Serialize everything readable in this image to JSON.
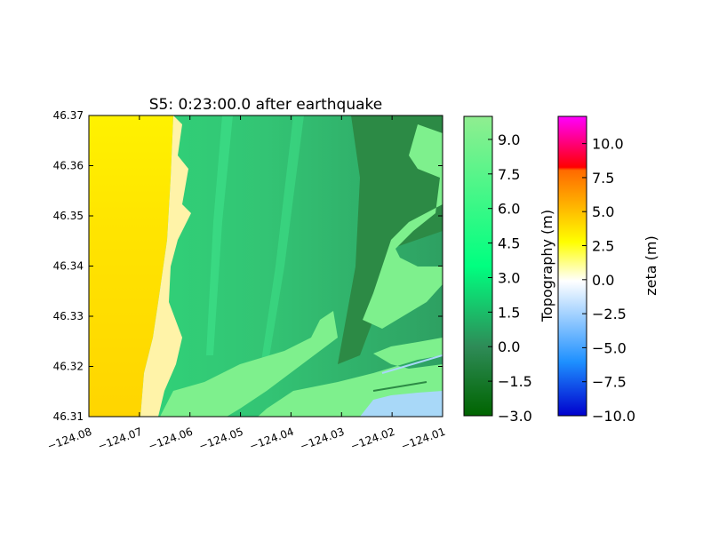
{
  "chart_data": {
    "type": "heatmap",
    "title": "S5: 0:23:00.0 after earthquake",
    "xlabel": "",
    "ylabel": "",
    "xlim": [
      -124.08,
      -124.01
    ],
    "ylim": [
      46.31,
      46.37
    ],
    "x_ticks": [
      -124.08,
      -124.07,
      -124.06,
      -124.05,
      -124.04,
      -124.03,
      -124.02,
      -124.01
    ],
    "x_tick_labels": [
      "−124.08",
      "−124.07",
      "−124.06",
      "−124.05",
      "−124.04",
      "−124.03",
      "−124.02",
      "−124.01"
    ],
    "y_ticks": [
      46.31,
      46.32,
      46.33,
      46.34,
      46.35,
      46.36,
      46.37
    ],
    "y_tick_labels": [
      "46.31",
      "46.32",
      "46.33",
      "46.34",
      "46.35",
      "46.36",
      "46.37"
    ],
    "grid": false,
    "colorbars": [
      {
        "label": "Topography (m)",
        "range": [
          -3.0,
          10.0
        ],
        "ticks": [
          -3.0,
          -1.5,
          0.0,
          1.5,
          3.0,
          4.5,
          6.0,
          7.5,
          9.0
        ],
        "tick_labels": [
          "−3.0",
          "−1.5",
          "0.0",
          "1.5",
          "3.0",
          "4.5",
          "6.0",
          "7.5",
          "9.0"
        ],
        "colors": [
          "#006400",
          "#2e8b57",
          "#00ff80",
          "#90ee90"
        ]
      },
      {
        "label": "zeta (m)",
        "range": [
          -10.0,
          12.0
        ],
        "ticks": [
          -10.0,
          -7.5,
          -5.0,
          -2.5,
          0.0,
          2.5,
          5.0,
          7.5,
          10.0
        ],
        "tick_labels": [
          "−10.0",
          "−7.5",
          "−5.0",
          "−2.5",
          "0.0",
          "2.5",
          "5.0",
          "7.5",
          "10.0"
        ],
        "colors": [
          "#0000cd",
          "#1e90ff",
          "#ffffff",
          "#ffff00",
          "#ff4500",
          "#ff0000",
          "#ff00ff"
        ]
      }
    ],
    "colors": {
      "ocean": "#ffd700",
      "ocean_far": "#ffee00",
      "shore_foam": "#fff6b0",
      "inundated_land": "#22d672",
      "high_land": "#7ef08d",
      "low_land": "#2c8a45",
      "shallow_water": "#a8d8f8"
    }
  }
}
